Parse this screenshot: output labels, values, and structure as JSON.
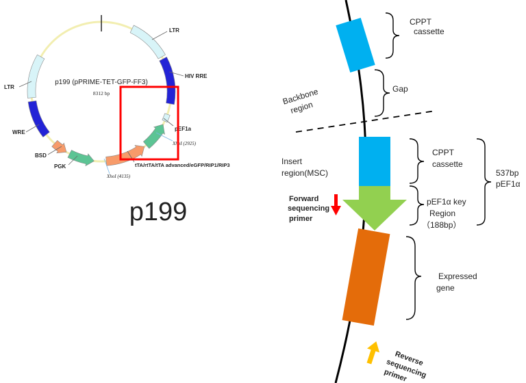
{
  "plasmid": {
    "name": "p199 (pPRIME-TET-GFP-FF3)",
    "size": "8312 bp",
    "caption": "p199",
    "labels": {
      "ltr_top": "LTR",
      "hiv_rre": "HIV RRE",
      "ltr_left": "LTR",
      "pef1a": "pEF1a",
      "xhoi_1": "XhoI (2925)",
      "tta": "tTA/rtTA/tTA advanced/eGFP/RIP1/RIP3",
      "wre": "WRE",
      "bsd": "BSD",
      "pgk": "PGK",
      "xhoi_2": "XhoI (4135)"
    }
  },
  "detail": {
    "cppt_top_1": "CPPT",
    "cppt_top_2": "cassette",
    "gap": "Gap",
    "backbone_1": "Backbone",
    "backbone_2": "region",
    "insert_1": "Insert",
    "insert_2": "region(MSC)",
    "cppt_mid_1": "CPPT",
    "cppt_mid_2": "cassette",
    "pef1a_key_1": "pEF1α key",
    "pef1a_key_2": "Region",
    "pef1a_key_3": "（188bp）",
    "size_1": "537bp",
    "size_2": "pEF1α",
    "fwd_1": "Forward",
    "fwd_2": "sequencing",
    "fwd_3": "primer",
    "expressed_1": "Expressed",
    "expressed_2": "gene",
    "rev_1": "Reverse",
    "rev_2": "sequencing",
    "rev_3": "primer"
  },
  "colors": {
    "cyan": "#00b0f0",
    "green": "#92d050",
    "orange": "#e46c0a",
    "red": "#ff0000",
    "yellow": "#ffc000",
    "blue": "#2323d6",
    "lightcyan": "#d8f4f8",
    "teal": "#5cc494",
    "salmon": "#f79b6a"
  }
}
